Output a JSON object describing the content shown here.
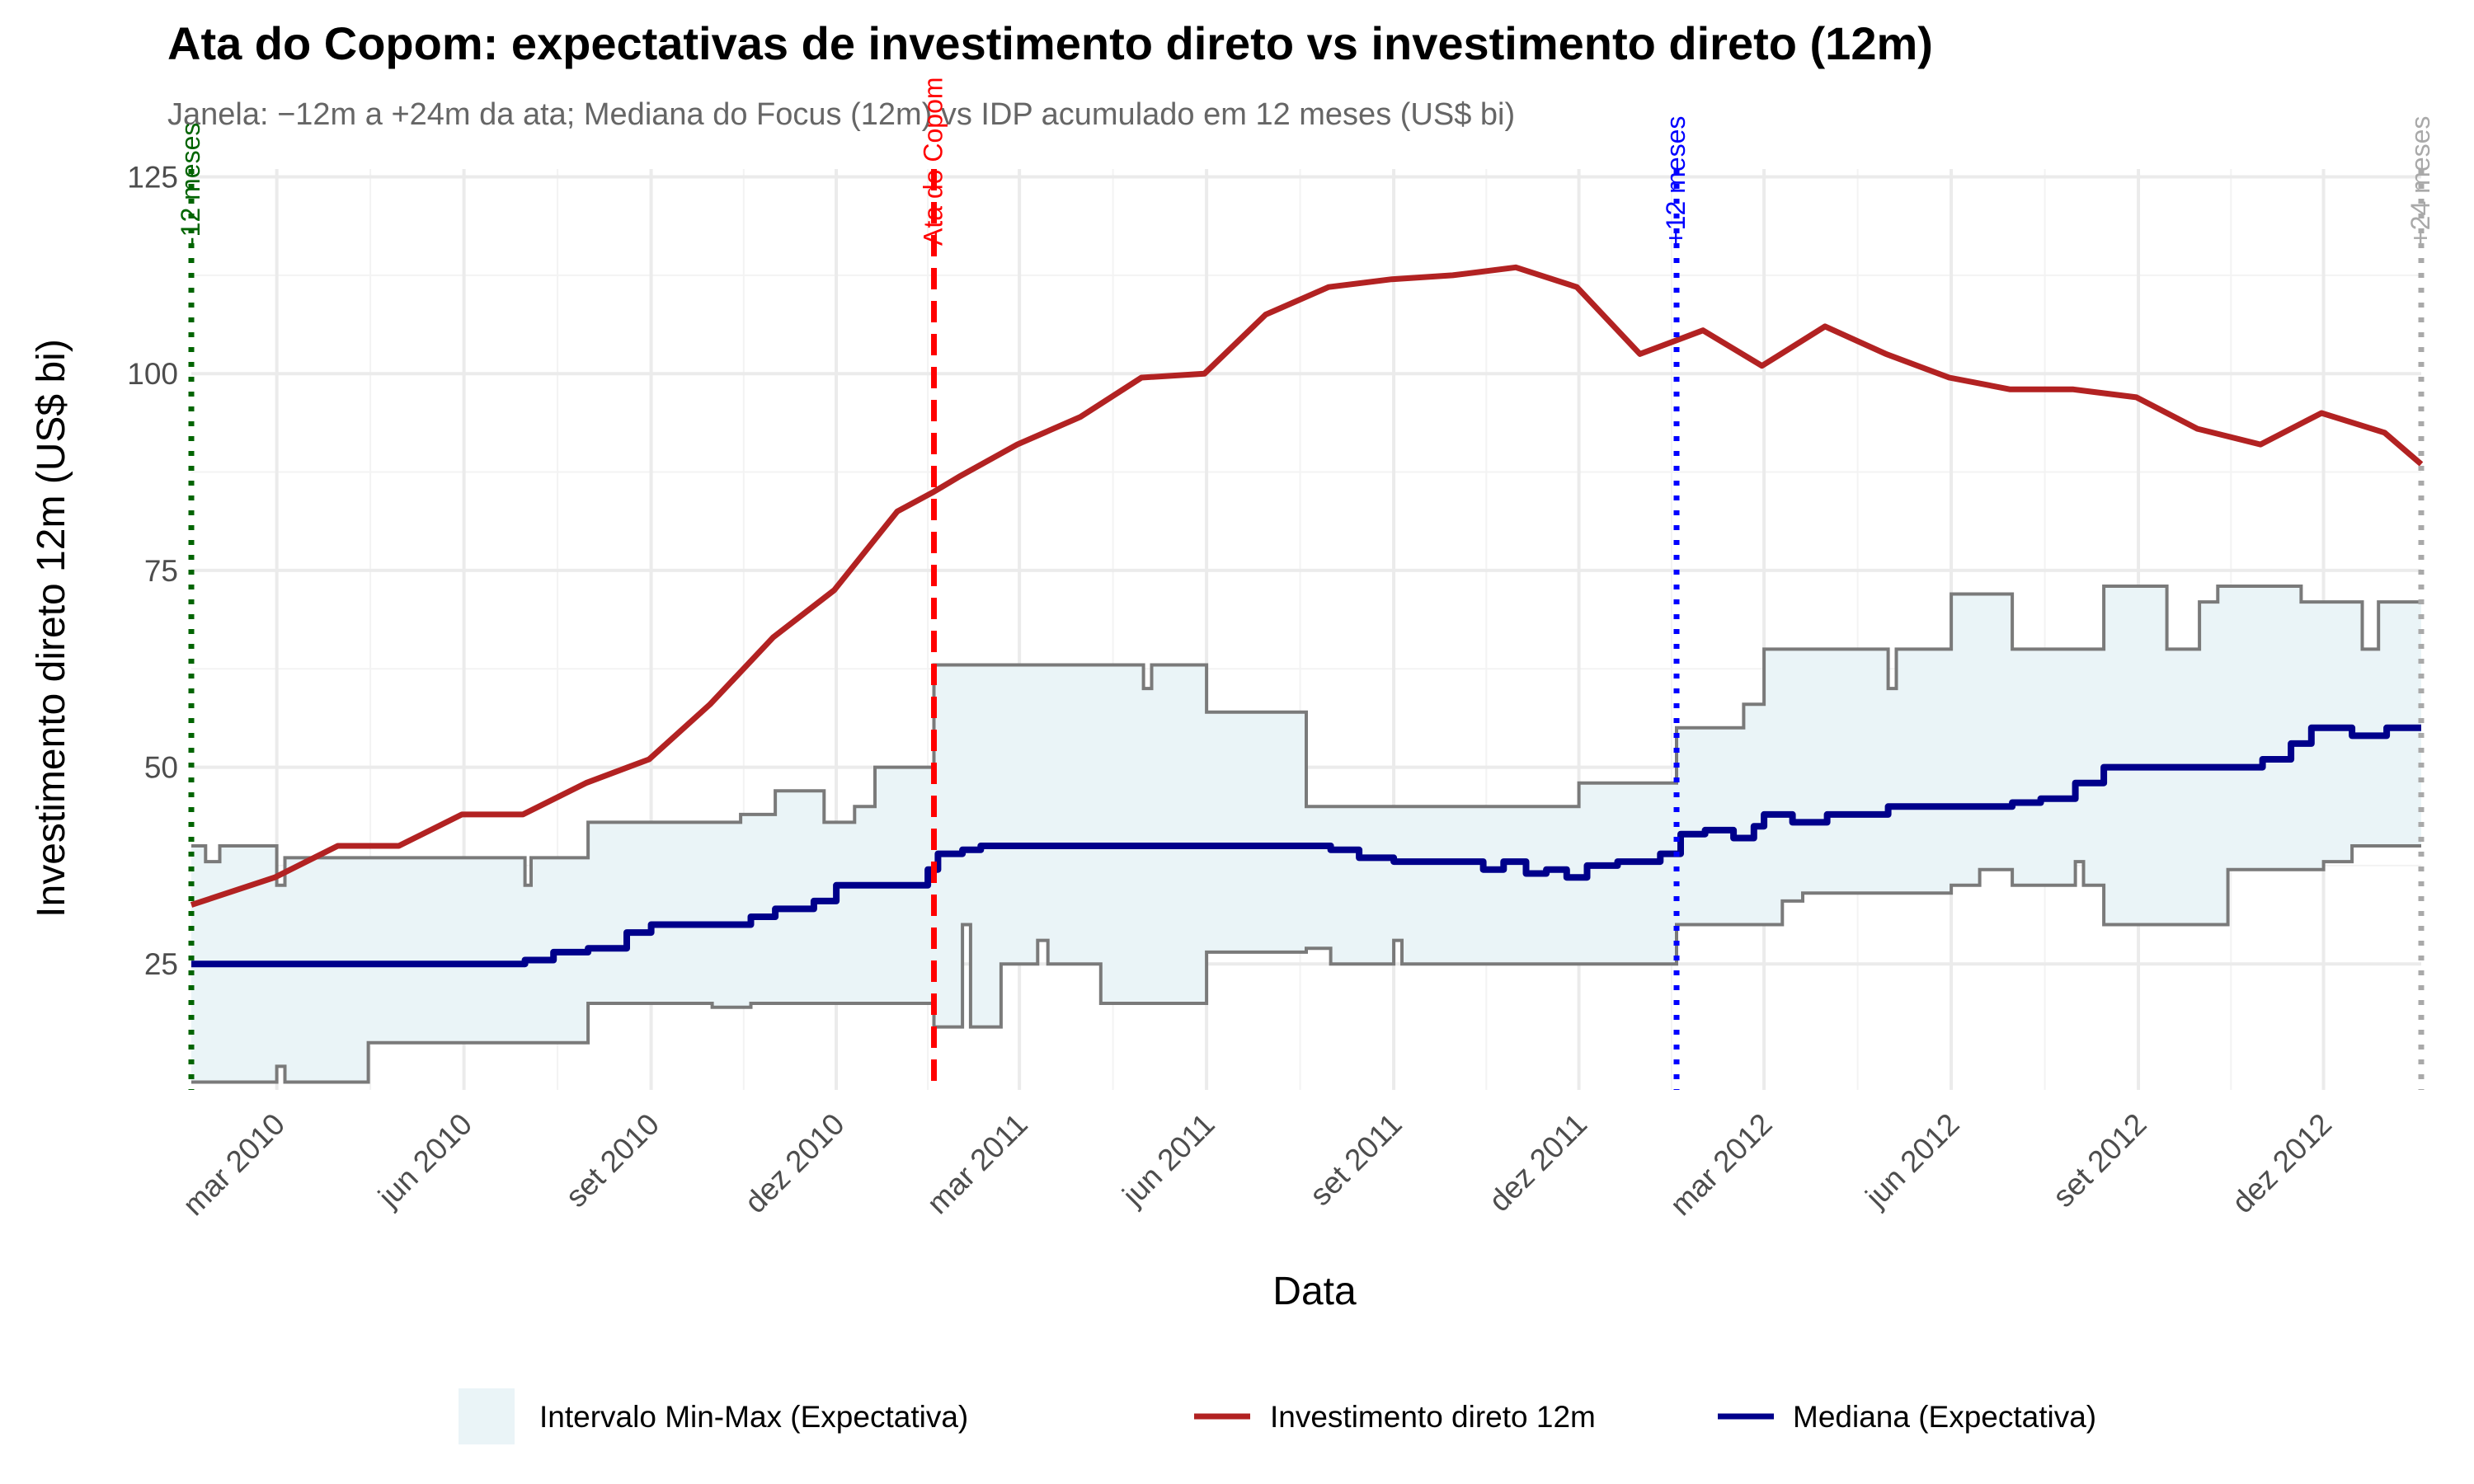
{
  "chart_data": {
    "type": "line",
    "title": "Ata do Copom: expectativas de investimento direto vs investimento direto (12m)",
    "subtitle": "Janela: −12m a +24m da ata; Mediana do Focus (12m) vs IDP acumulado em 12 meses (US$ bi)",
    "xlabel": "Data",
    "ylabel": "Investimento direto 12m (US$ bi)",
    "x_range": [
      "2010-01-18",
      "2013-01-18"
    ],
    "ylim": [
      9,
      126
    ],
    "y_ticks": [
      25,
      50,
      75,
      100,
      125
    ],
    "x_ticks": [
      {
        "date": "2010-03-01",
        "label": "mar 2010"
      },
      {
        "date": "2010-06-01",
        "label": "jun 2010"
      },
      {
        "date": "2010-09-01",
        "label": "set 2010"
      },
      {
        "date": "2010-12-01",
        "label": "dez 2010"
      },
      {
        "date": "2011-03-01",
        "label": "mar 2011"
      },
      {
        "date": "2011-06-01",
        "label": "jun 2011"
      },
      {
        "date": "2011-09-01",
        "label": "set 2011"
      },
      {
        "date": "2011-12-01",
        "label": "dez 2011"
      },
      {
        "date": "2012-03-01",
        "label": "mar 2012"
      },
      {
        "date": "2012-06-01",
        "label": "jun 2012"
      },
      {
        "date": "2012-09-01",
        "label": "set 2012"
      },
      {
        "date": "2012-12-01",
        "label": "dez 2012"
      }
    ],
    "grid": true,
    "legend_position": "bottom",
    "colors": {
      "ribbon_fill": "#eaf4f7",
      "ribbon_edge": "#7a7a7a",
      "actual": "#b22222",
      "median": "#00008b",
      "ata": "#ff0000",
      "minus12": "#006400",
      "plus12": "#0000ff",
      "plus24": "#a9a9a9"
    },
    "vertical_lines": [
      {
        "date": "2010-01-18",
        "label": "-12 meses",
        "color": "#006400",
        "style": "dotted"
      },
      {
        "date": "2011-01-18",
        "label": "Ata do Copom",
        "color": "#ff0000",
        "style": "dashed"
      },
      {
        "date": "2012-01-18",
        "label": "+12 meses",
        "color": "#0000ff",
        "style": "dotted"
      },
      {
        "date": "2013-01-18",
        "label": "+24 meses",
        "color": "#a9a9a9",
        "style": "dotted"
      }
    ],
    "series": [
      {
        "name": "Investimento direto 12m",
        "kind": "line",
        "points": [
          [
            "2010-01-18",
            32.5
          ],
          [
            "2010-02-28",
            36
          ],
          [
            "2010-03-31",
            40
          ],
          [
            "2010-04-30",
            40
          ],
          [
            "2010-05-31",
            44
          ],
          [
            "2010-06-30",
            44
          ],
          [
            "2010-07-31",
            48
          ],
          [
            "2010-08-31",
            51
          ],
          [
            "2010-09-30",
            58
          ],
          [
            "2010-10-31",
            66.5
          ],
          [
            "2010-11-30",
            72.5
          ],
          [
            "2010-12-31",
            82.5
          ],
          [
            "2011-01-18",
            85
          ],
          [
            "2011-01-31",
            87
          ],
          [
            "2011-02-28",
            91
          ],
          [
            "2011-03-31",
            94.5
          ],
          [
            "2011-04-30",
            99.5
          ],
          [
            "2011-05-31",
            100
          ],
          [
            "2011-06-30",
            107.5
          ],
          [
            "2011-07-31",
            111
          ],
          [
            "2011-08-31",
            112
          ],
          [
            "2011-09-30",
            112.5
          ],
          [
            "2011-10-31",
            113.5
          ],
          [
            "2011-11-30",
            111
          ],
          [
            "2011-12-31",
            102.5
          ],
          [
            "2012-01-31",
            105.5
          ],
          [
            "2012-02-29",
            101
          ],
          [
            "2012-03-31",
            106
          ],
          [
            "2012-04-30",
            102.5
          ],
          [
            "2012-05-31",
            99.5
          ],
          [
            "2012-06-30",
            98
          ],
          [
            "2012-07-31",
            98
          ],
          [
            "2012-08-31",
            97
          ],
          [
            "2012-09-30",
            93
          ],
          [
            "2012-10-31",
            91
          ],
          [
            "2012-11-30",
            95
          ],
          [
            "2012-12-31",
            92.5
          ],
          [
            "2013-01-18",
            88.5
          ]
        ]
      },
      {
        "name": "Mediana (Expectativa)",
        "kind": "step",
        "points": [
          [
            "2010-01-18",
            25
          ],
          [
            "2010-07-01",
            25.5
          ],
          [
            "2010-07-15",
            26.5
          ],
          [
            "2010-08-01",
            27
          ],
          [
            "2010-08-20",
            29
          ],
          [
            "2010-09-01",
            30
          ],
          [
            "2010-10-20",
            31
          ],
          [
            "2010-11-01",
            32
          ],
          [
            "2010-11-20",
            33
          ],
          [
            "2010-12-01",
            35
          ],
          [
            "2011-01-15",
            37
          ],
          [
            "2011-01-20",
            39
          ],
          [
            "2011-02-01",
            39.5
          ],
          [
            "2011-02-10",
            40
          ],
          [
            "2011-08-01",
            39.5
          ],
          [
            "2011-08-15",
            38.5
          ],
          [
            "2011-09-01",
            38
          ],
          [
            "2011-10-15",
            37
          ],
          [
            "2011-10-25",
            38
          ],
          [
            "2011-11-05",
            36.5
          ],
          [
            "2011-11-15",
            37
          ],
          [
            "2011-11-25",
            36
          ],
          [
            "2011-12-05",
            37.5
          ],
          [
            "2011-12-20",
            38
          ],
          [
            "2012-01-10",
            39
          ],
          [
            "2012-01-20",
            41.5
          ],
          [
            "2012-02-01",
            42
          ],
          [
            "2012-02-15",
            41
          ],
          [
            "2012-02-25",
            42.5
          ],
          [
            "2012-03-01",
            44
          ],
          [
            "2012-03-15",
            43
          ],
          [
            "2012-04-01",
            44
          ],
          [
            "2012-05-01",
            45
          ],
          [
            "2012-07-01",
            45.5
          ],
          [
            "2012-07-15",
            46
          ],
          [
            "2012-08-01",
            48
          ],
          [
            "2012-08-15",
            50
          ],
          [
            "2012-11-01",
            51
          ],
          [
            "2012-11-15",
            53
          ],
          [
            "2012-11-25",
            55
          ],
          [
            "2012-12-15",
            54
          ],
          [
            "2013-01-01",
            55
          ],
          [
            "2013-01-18",
            55
          ]
        ]
      },
      {
        "name": "Intervalo Min-Max (Expectativa)",
        "kind": "ribbon",
        "upper": [
          [
            "2010-01-18",
            40
          ],
          [
            "2010-01-25",
            38
          ],
          [
            "2010-02-01",
            40
          ],
          [
            "2010-03-01",
            35
          ],
          [
            "2010-03-05",
            38.5
          ],
          [
            "2010-07-01",
            35
          ],
          [
            "2010-07-04",
            38.5
          ],
          [
            "2010-08-01",
            43
          ],
          [
            "2010-10-15",
            44
          ],
          [
            "2010-11-01",
            47
          ],
          [
            "2010-11-25",
            43
          ],
          [
            "2010-12-10",
            45
          ],
          [
            "2010-12-20",
            50
          ],
          [
            "2011-01-18",
            63
          ],
          [
            "2011-05-01",
            60
          ],
          [
            "2011-05-05",
            63
          ],
          [
            "2011-06-01",
            57
          ],
          [
            "2011-07-20",
            45
          ],
          [
            "2011-12-01",
            48
          ],
          [
            "2012-01-18",
            55
          ],
          [
            "2012-02-20",
            58
          ],
          [
            "2012-03-01",
            65
          ],
          [
            "2012-05-01",
            60
          ],
          [
            "2012-05-05",
            65
          ],
          [
            "2012-06-01",
            72
          ],
          [
            "2012-07-01",
            65
          ],
          [
            "2012-08-15",
            73
          ],
          [
            "2012-09-15",
            65
          ],
          [
            "2012-10-01",
            71
          ],
          [
            "2012-10-10",
            73
          ],
          [
            "2012-11-20",
            71
          ],
          [
            "2012-12-20",
            65
          ],
          [
            "2012-12-28",
            71
          ],
          [
            "2013-01-18",
            71
          ]
        ],
        "lower": [
          [
            "2010-01-18",
            10
          ],
          [
            "2010-03-01",
            12
          ],
          [
            "2010-03-05",
            10
          ],
          [
            "2010-04-15",
            15
          ],
          [
            "2010-08-01",
            20
          ],
          [
            "2010-10-01",
            19.5
          ],
          [
            "2010-10-20",
            20
          ],
          [
            "2011-01-18",
            17
          ],
          [
            "2011-02-01",
            30
          ],
          [
            "2011-02-05",
            17
          ],
          [
            "2011-02-20",
            25
          ],
          [
            "2011-03-10",
            28
          ],
          [
            "2011-03-15",
            25
          ],
          [
            "2011-04-10",
            20
          ],
          [
            "2011-06-01",
            26.5
          ],
          [
            "2011-07-20",
            27
          ],
          [
            "2011-08-01",
            25
          ],
          [
            "2011-09-01",
            28
          ],
          [
            "2011-09-05",
            25
          ],
          [
            "2012-01-18",
            30
          ],
          [
            "2012-03-10",
            33
          ],
          [
            "2012-03-20",
            34
          ],
          [
            "2012-06-01",
            35
          ],
          [
            "2012-06-15",
            37
          ],
          [
            "2012-07-01",
            35
          ],
          [
            "2012-08-01",
            38
          ],
          [
            "2012-08-05",
            35
          ],
          [
            "2012-08-15",
            30
          ],
          [
            "2012-10-15",
            37
          ],
          [
            "2012-12-01",
            38
          ],
          [
            "2012-12-15",
            40
          ],
          [
            "2013-01-18",
            40
          ]
        ]
      }
    ],
    "legend": [
      {
        "label": "Intervalo Min-Max (Expectativa)",
        "kind": "fill"
      },
      {
        "label": "Investimento direto 12m",
        "kind": "line_red"
      },
      {
        "label": "Mediana (Expectativa)",
        "kind": "line_blue"
      }
    ]
  }
}
